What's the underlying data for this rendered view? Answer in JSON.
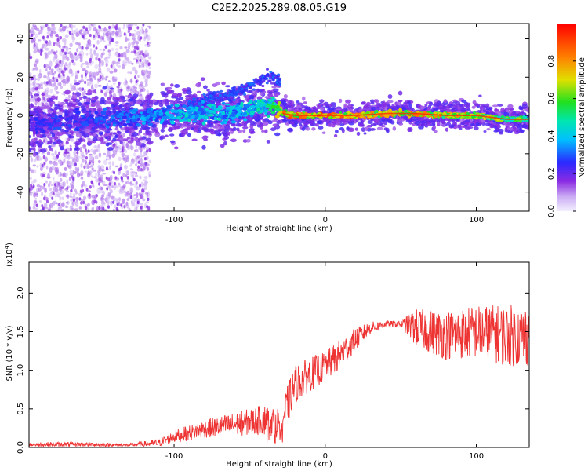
{
  "chart_data": [
    {
      "type": "heatmap",
      "title": "C2E2.2025.289.08.05.G19",
      "xlabel": "Height of straight line (km)",
      "ylabel": "Frequency (Hz)",
      "xlim": [
        -196,
        135
      ],
      "ylim": [
        -50,
        48
      ],
      "x_ticks": [
        -100,
        0,
        100
      ],
      "y_ticks": [
        -40,
        -20,
        0,
        20,
        40
      ],
      "x_tick_labels": [
        "-100",
        "0",
        "100"
      ],
      "y_tick_labels": [
        "-40",
        "-20",
        "0",
        "20",
        "40"
      ],
      "colorbar": {
        "label": "Normalized spectral amplitude",
        "range": [
          0,
          1
        ],
        "ticks": [
          0.0,
          0.2,
          0.4,
          0.6,
          0.8
        ],
        "tick_labels": [
          "0.0",
          "0.2",
          "0.4",
          "0.6",
          "0.8"
        ],
        "colormap": "rainbow"
      },
      "ridge": {
        "x": [
          -196,
          -170,
          -150,
          -130,
          -110,
          -90,
          -75,
          -60,
          -45,
          -35,
          -28,
          -20,
          0,
          20,
          40,
          60,
          80,
          100,
          120,
          135
        ],
        "y": [
          -4,
          -3,
          -2,
          -1,
          0,
          1,
          2,
          1,
          5,
          6,
          1,
          0,
          0,
          0,
          1,
          1,
          0,
          0,
          -2,
          -2
        ],
        "amplitude": [
          0.25,
          0.3,
          0.3,
          0.35,
          0.4,
          0.45,
          0.45,
          0.45,
          0.5,
          0.55,
          0.9,
          0.9,
          0.9,
          0.9,
          0.85,
          0.85,
          0.8,
          0.8,
          0.7,
          0.6
        ]
      }
    },
    {
      "type": "line",
      "xlabel": "Height of straight line (km)",
      "ylabel": "SNR (10 * v/v)",
      "y_scale_label": "(x10",
      "y_scale_exp": "4",
      "xlim": [
        -196,
        135
      ],
      "ylim": [
        0,
        2.4
      ],
      "x_ticks": [
        -100,
        0,
        100
      ],
      "y_ticks": [
        0.0,
        0.5,
        1.0,
        1.5,
        2.0
      ],
      "x_tick_labels": [
        "-100",
        "0",
        "100"
      ],
      "y_tick_labels": [
        "0.0",
        "0.5",
        "1.0",
        "1.5",
        "2.0"
      ],
      "color": "#ee3333",
      "series": [
        {
          "name": "SNR",
          "envelope_x": [
            -196,
            -160,
            -130,
            -110,
            -100,
            -80,
            -60,
            -40,
            -30,
            -25,
            -20,
            -10,
            0,
            10,
            20,
            30,
            40,
            50,
            60,
            80,
            100,
            120,
            135
          ],
          "envelope_y": [
            0.04,
            0.04,
            0.03,
            0.06,
            0.14,
            0.24,
            0.3,
            0.36,
            0.32,
            0.55,
            0.82,
            0.95,
            1.05,
            1.2,
            1.4,
            1.55,
            1.6,
            1.6,
            1.55,
            1.45,
            1.5,
            1.45,
            1.45
          ],
          "spread": [
            0.03,
            0.03,
            0.02,
            0.05,
            0.08,
            0.12,
            0.15,
            0.2,
            0.2,
            0.25,
            0.25,
            0.22,
            0.2,
            0.2,
            0.15,
            0.08,
            0.04,
            0.04,
            0.25,
            0.32,
            0.35,
            0.4,
            0.4
          ]
        }
      ]
    }
  ]
}
